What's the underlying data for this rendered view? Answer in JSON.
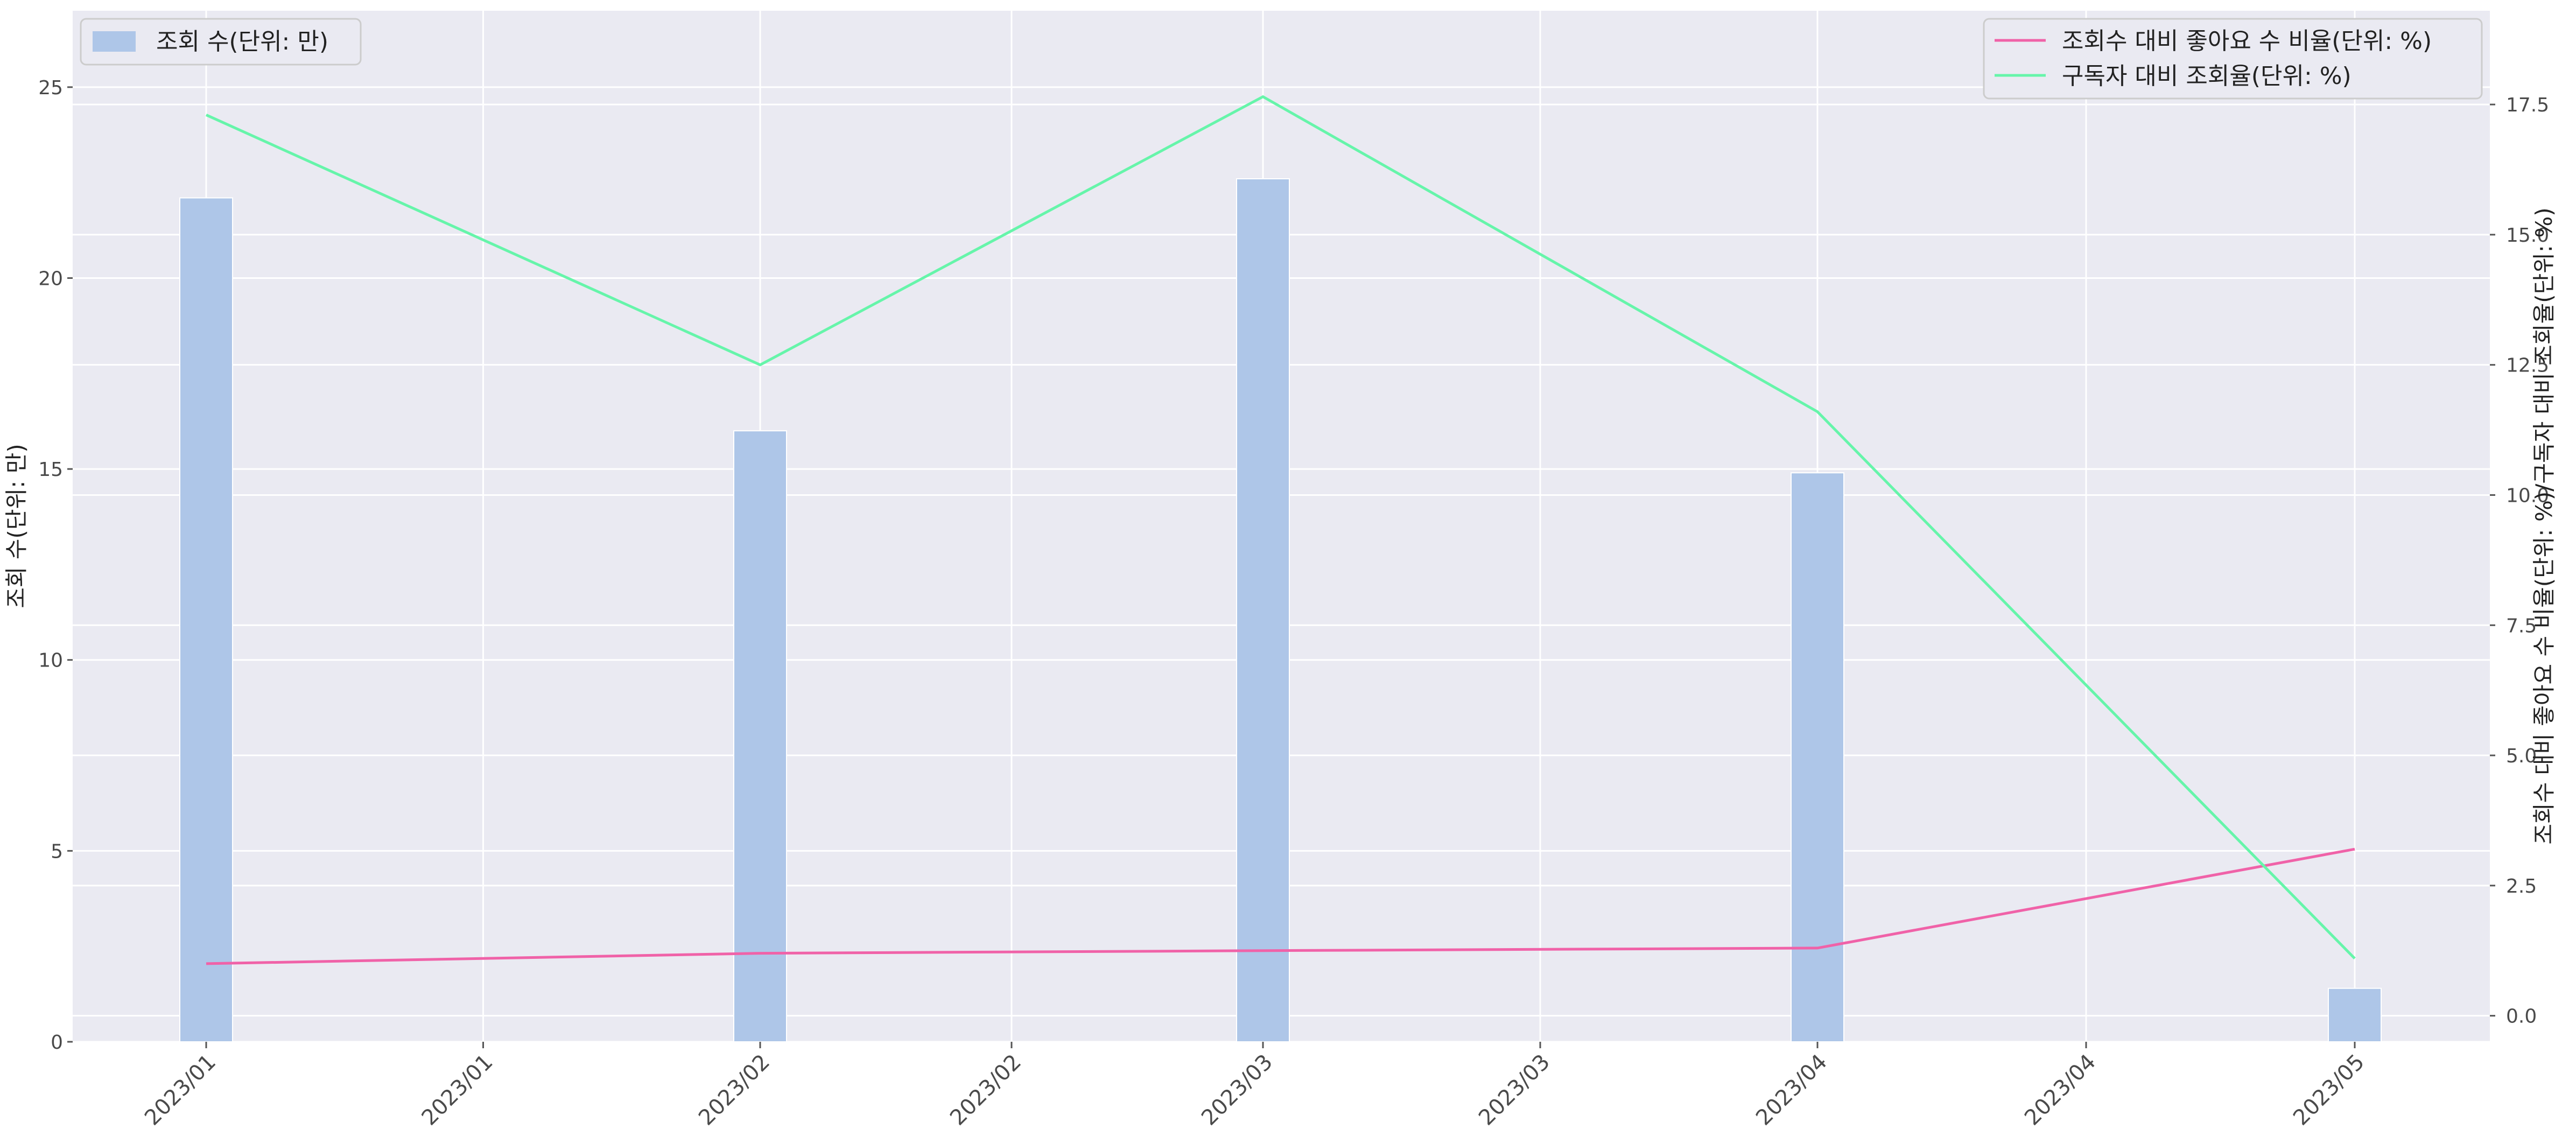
{
  "chart_data": {
    "type": "bar+line",
    "title": "",
    "x_tick_labels": [
      "2023/01",
      "2023/01",
      "2023/02",
      "2023/02",
      "2023/03",
      "2023/03",
      "2023/04",
      "2023/04",
      "2023/05"
    ],
    "categories": [
      "2023/01",
      "2023/02",
      "2023/03",
      "2023/04",
      "2023/05"
    ],
    "bar_series": {
      "name": "조회 수(단위: 만)",
      "color": "#aec6e8",
      "values": [
        22.1,
        16.0,
        22.6,
        14.9,
        1.4
      ]
    },
    "line_series": [
      {
        "name": "조회수 대비 좋아요 수 비율(단위: %)",
        "color": "#f062a8",
        "values": [
          1.0,
          1.2,
          1.25,
          1.3,
          3.2
        ]
      },
      {
        "name": "구독자 대비 조회율(단위: %)",
        "color": "#66f5aa",
        "values": [
          17.3,
          12.5,
          17.65,
          11.6,
          1.1
        ]
      }
    ],
    "y_left": {
      "label": "조회 수(단위: 만)",
      "range": [
        0,
        27
      ],
      "ticks": [
        0,
        5,
        10,
        15,
        20,
        25
      ]
    },
    "y_right": {
      "label": "조회수 대비 좋아요 수 비율(단위: %)/구독자 대비 조회율(단위: %)",
      "range": [
        -0.5,
        19.3
      ],
      "ticks": [
        0.0,
        2.5,
        5.0,
        7.5,
        10.0,
        12.5,
        15.0,
        17.5
      ],
      "tick_labels": [
        "0.0",
        "2.5",
        "5.0",
        "7.5",
        "10.0",
        "12.5",
        "15.0",
        "17.5"
      ]
    },
    "grid": true,
    "legend_left_placement": "top-left",
    "legend_right_placement": "top-right",
    "background_color": "#eaeaf2",
    "grid_color": "#ffffff"
  }
}
